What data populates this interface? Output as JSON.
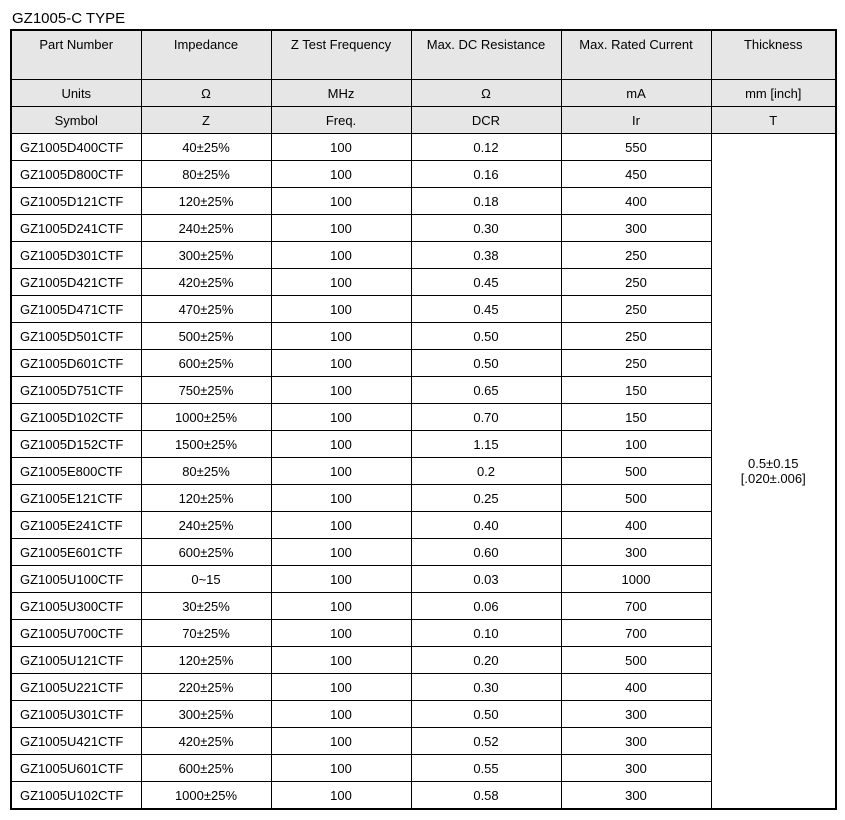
{
  "title": "GZ1005-C TYPE",
  "columns": {
    "headers": [
      "Part Number",
      "Impedance",
      "Z Test Frequency",
      "Max. DC Resistance",
      "Max. Rated Current",
      "Thickness"
    ],
    "units": [
      "Units",
      "Ω",
      "MHz",
      "Ω",
      "mA",
      "mm [inch]"
    ],
    "symbols": [
      "Symbol",
      "Z",
      "Freq.",
      "DCR",
      "Ir",
      "T"
    ]
  },
  "thickness": {
    "value": "0.5±0.15",
    "inch": "[.020±.006]"
  },
  "rows": [
    {
      "pn": "GZ1005D400CTF",
      "imp": "40±25%",
      "freq": "100",
      "dcr": "0.12",
      "ir": "550"
    },
    {
      "pn": "GZ1005D800CTF",
      "imp": "80±25%",
      "freq": "100",
      "dcr": "0.16",
      "ir": "450"
    },
    {
      "pn": "GZ1005D121CTF",
      "imp": "120±25%",
      "freq": "100",
      "dcr": "0.18",
      "ir": "400"
    },
    {
      "pn": "GZ1005D241CTF",
      "imp": "240±25%",
      "freq": "100",
      "dcr": "0.30",
      "ir": "300"
    },
    {
      "pn": "GZ1005D301CTF",
      "imp": "300±25%",
      "freq": "100",
      "dcr": "0.38",
      "ir": "250"
    },
    {
      "pn": "GZ1005D421CTF",
      "imp": "420±25%",
      "freq": "100",
      "dcr": "0.45",
      "ir": "250"
    },
    {
      "pn": "GZ1005D471CTF",
      "imp": "470±25%",
      "freq": "100",
      "dcr": "0.45",
      "ir": "250"
    },
    {
      "pn": "GZ1005D501CTF",
      "imp": "500±25%",
      "freq": "100",
      "dcr": "0.50",
      "ir": "250"
    },
    {
      "pn": "GZ1005D601CTF",
      "imp": "600±25%",
      "freq": "100",
      "dcr": "0.50",
      "ir": "250"
    },
    {
      "pn": "GZ1005D751CTF",
      "imp": "750±25%",
      "freq": "100",
      "dcr": "0.65",
      "ir": "150"
    },
    {
      "pn": "GZ1005D102CTF",
      "imp": "1000±25%",
      "freq": "100",
      "dcr": "0.70",
      "ir": "150"
    },
    {
      "pn": "GZ1005D152CTF",
      "imp": "1500±25%",
      "freq": "100",
      "dcr": "1.15",
      "ir": "100"
    },
    {
      "pn": "GZ1005E800CTF",
      "imp": "80±25%",
      "freq": "100",
      "dcr": "0.2",
      "ir": "500"
    },
    {
      "pn": "GZ1005E121CTF",
      "imp": "120±25%",
      "freq": "100",
      "dcr": "0.25",
      "ir": "500"
    },
    {
      "pn": "GZ1005E241CTF",
      "imp": "240±25%",
      "freq": "100",
      "dcr": "0.40",
      "ir": "400"
    },
    {
      "pn": "GZ1005E601CTF",
      "imp": "600±25%",
      "freq": "100",
      "dcr": "0.60",
      "ir": "300"
    },
    {
      "pn": "GZ1005U100CTF",
      "imp": "0~15",
      "freq": "100",
      "dcr": "0.03",
      "ir": "1000"
    },
    {
      "pn": "GZ1005U300CTF",
      "imp": "30±25%",
      "freq": "100",
      "dcr": "0.06",
      "ir": "700"
    },
    {
      "pn": "GZ1005U700CTF",
      "imp": "70±25%",
      "freq": "100",
      "dcr": "0.10",
      "ir": "700"
    },
    {
      "pn": "GZ1005U121CTF",
      "imp": "120±25%",
      "freq": "100",
      "dcr": "0.20",
      "ir": "500"
    },
    {
      "pn": "GZ1005U221CTF",
      "imp": "220±25%",
      "freq": "100",
      "dcr": "0.30",
      "ir": "400"
    },
    {
      "pn": "GZ1005U301CTF",
      "imp": "300±25%",
      "freq": "100",
      "dcr": "0.50",
      "ir": "300"
    },
    {
      "pn": "GZ1005U421CTF",
      "imp": "420±25%",
      "freq": "100",
      "dcr": "0.52",
      "ir": "300"
    },
    {
      "pn": "GZ1005U601CTF",
      "imp": "600±25%",
      "freq": "100",
      "dcr": "0.55",
      "ir": "300"
    },
    {
      "pn": "GZ1005U102CTF",
      "imp": "1000±25%",
      "freq": "100",
      "dcr": "0.58",
      "ir": "300"
    }
  ]
}
